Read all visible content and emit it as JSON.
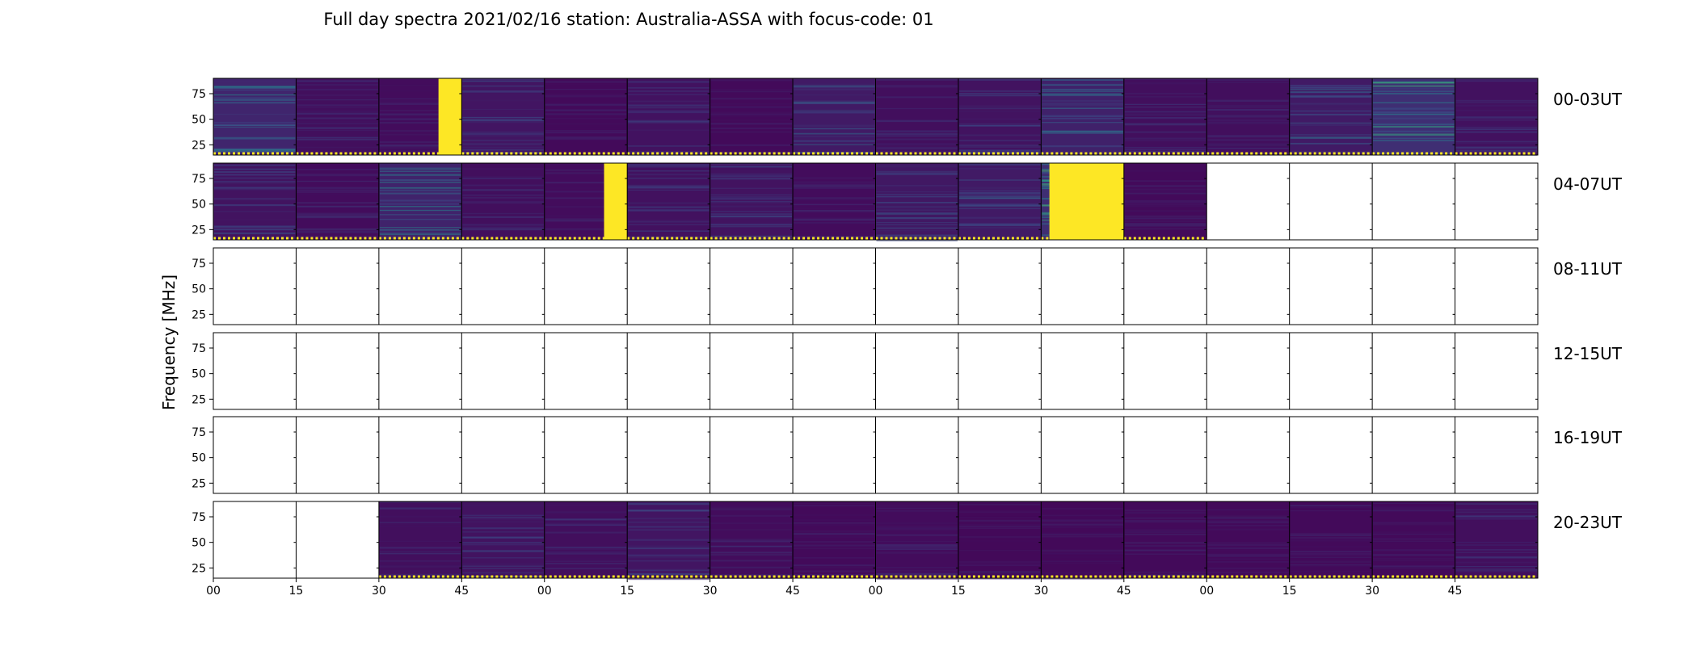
{
  "chart_data": {
    "type": "heatmap",
    "title": "Full day spectra 2021/02/16 station: Australia-ASSA with focus-code: 01",
    "ylabel": "Frequency [MHz]",
    "xlabel": "",
    "yticks": [
      "25",
      "50",
      "75"
    ],
    "ylim": [
      15,
      90
    ],
    "xticks": [
      "00",
      "15",
      "30",
      "45",
      "00",
      "15",
      "30",
      "45",
      "00",
      "15",
      "30",
      "45",
      "00",
      "15",
      "30",
      "45"
    ],
    "colormap": "viridis",
    "colors": {
      "low": "#440154",
      "mid": "#21918c",
      "high": "#fde725",
      "tick_dots": "#fde725"
    },
    "rows": [
      {
        "label": "00-03UT",
        "cells": [
          {
            "status": "data",
            "level": 0.32,
            "saturated_band": null
          },
          {
            "status": "data",
            "level": 0.12,
            "saturated_band": null
          },
          {
            "status": "data",
            "level": 0.1,
            "saturated_band": [
              0.72,
              1.0
            ]
          },
          {
            "status": "data",
            "level": 0.18,
            "saturated_band": null
          },
          {
            "status": "data",
            "level": 0.08,
            "saturated_band": null
          },
          {
            "status": "data",
            "level": 0.15,
            "saturated_band": null
          },
          {
            "status": "data",
            "level": 0.08,
            "saturated_band": null
          },
          {
            "status": "data",
            "level": 0.22,
            "saturated_band": null
          },
          {
            "status": "data",
            "level": 0.12,
            "saturated_band": null
          },
          {
            "status": "data",
            "level": 0.16,
            "saturated_band": null
          },
          {
            "status": "data",
            "level": 0.28,
            "saturated_band": null
          },
          {
            "status": "data",
            "level": 0.12,
            "saturated_band": null
          },
          {
            "status": "data",
            "level": 0.12,
            "saturated_band": null
          },
          {
            "status": "data",
            "level": 0.22,
            "saturated_band": null
          },
          {
            "status": "data",
            "level": 0.4,
            "saturated_band": null
          },
          {
            "status": "data",
            "level": 0.14,
            "saturated_band": null
          }
        ]
      },
      {
        "label": "04-07UT",
        "cells": [
          {
            "status": "data",
            "level": 0.16,
            "saturated_band": null
          },
          {
            "status": "data",
            "level": 0.1,
            "saturated_band": null
          },
          {
            "status": "data",
            "level": 0.3,
            "saturated_band": null
          },
          {
            "status": "data",
            "level": 0.12,
            "saturated_band": null
          },
          {
            "status": "data",
            "level": 0.1,
            "saturated_band": [
              0.72,
              1.0
            ]
          },
          {
            "status": "data",
            "level": 0.14,
            "saturated_band": null
          },
          {
            "status": "data",
            "level": 0.16,
            "saturated_band": null
          },
          {
            "status": "data",
            "level": 0.1,
            "saturated_band": null
          },
          {
            "status": "data",
            "level": 0.2,
            "saturated_band": null
          },
          {
            "status": "data",
            "level": 0.22,
            "saturated_band": null
          },
          {
            "status": "data",
            "level": 0.4,
            "saturated_band": [
              0.1,
              1.0
            ]
          },
          {
            "status": "data",
            "level": 0.08,
            "saturated_band": null
          },
          {
            "status": "empty"
          },
          {
            "status": "empty"
          },
          {
            "status": "empty"
          },
          {
            "status": "empty"
          }
        ]
      },
      {
        "label": "08-11UT",
        "cells": [
          {
            "status": "empty"
          },
          {
            "status": "empty"
          },
          {
            "status": "empty"
          },
          {
            "status": "empty"
          },
          {
            "status": "empty"
          },
          {
            "status": "empty"
          },
          {
            "status": "empty"
          },
          {
            "status": "empty"
          },
          {
            "status": "empty"
          },
          {
            "status": "empty"
          },
          {
            "status": "empty"
          },
          {
            "status": "empty"
          },
          {
            "status": "empty"
          },
          {
            "status": "empty"
          },
          {
            "status": "empty"
          },
          {
            "status": "empty"
          }
        ]
      },
      {
        "label": "12-15UT",
        "cells": [
          {
            "status": "empty"
          },
          {
            "status": "empty"
          },
          {
            "status": "empty"
          },
          {
            "status": "empty"
          },
          {
            "status": "empty"
          },
          {
            "status": "empty"
          },
          {
            "status": "empty"
          },
          {
            "status": "empty"
          },
          {
            "status": "empty"
          },
          {
            "status": "empty"
          },
          {
            "status": "empty"
          },
          {
            "status": "empty"
          },
          {
            "status": "empty"
          },
          {
            "status": "empty"
          },
          {
            "status": "empty"
          },
          {
            "status": "empty"
          }
        ]
      },
      {
        "label": "16-19UT",
        "cells": [
          {
            "status": "empty"
          },
          {
            "status": "empty"
          },
          {
            "status": "empty"
          },
          {
            "status": "empty"
          },
          {
            "status": "empty"
          },
          {
            "status": "empty"
          },
          {
            "status": "empty"
          },
          {
            "status": "empty"
          },
          {
            "status": "empty"
          },
          {
            "status": "empty"
          },
          {
            "status": "empty"
          },
          {
            "status": "empty"
          },
          {
            "status": "empty"
          },
          {
            "status": "empty"
          },
          {
            "status": "empty"
          },
          {
            "status": "empty"
          }
        ]
      },
      {
        "label": "20-23UT",
        "cells": [
          {
            "status": "empty"
          },
          {
            "status": "empty"
          },
          {
            "status": "data",
            "level": 0.12,
            "saturated_band": null
          },
          {
            "status": "data",
            "level": 0.16,
            "saturated_band": null
          },
          {
            "status": "data",
            "level": 0.12,
            "saturated_band": null
          },
          {
            "status": "data",
            "level": 0.18,
            "saturated_band": null
          },
          {
            "status": "data",
            "level": 0.1,
            "saturated_band": null
          },
          {
            "status": "data",
            "level": 0.08,
            "saturated_band": null
          },
          {
            "status": "data",
            "level": 0.1,
            "saturated_band": null
          },
          {
            "status": "data",
            "level": 0.07,
            "saturated_band": null
          },
          {
            "status": "data",
            "level": 0.07,
            "saturated_band": null
          },
          {
            "status": "data",
            "level": 0.08,
            "saturated_band": null
          },
          {
            "status": "data",
            "level": 0.08,
            "saturated_band": null
          },
          {
            "status": "data",
            "level": 0.08,
            "saturated_band": null
          },
          {
            "status": "data",
            "level": 0.08,
            "saturated_band": null
          },
          {
            "status": "data",
            "level": 0.12,
            "saturated_band": null
          }
        ]
      }
    ]
  }
}
